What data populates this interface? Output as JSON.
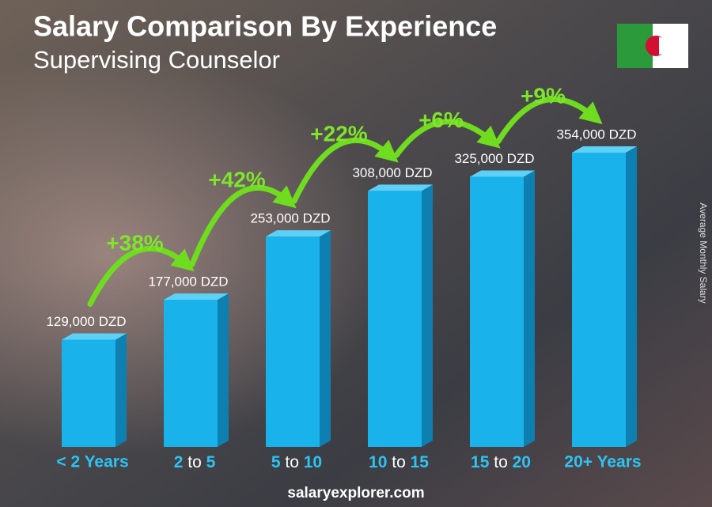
{
  "chart_data": {
    "type": "bar",
    "title": "Salary Comparison By Experience",
    "subtitle": "Supervising Counselor",
    "y_axis_label": "Average Monthly Salary",
    "categories": [
      "< 2 Years",
      "2 to 5",
      "5 to 10",
      "10 to 15",
      "15 to 20",
      "20+ Years"
    ],
    "values": [
      129000,
      177000,
      253000,
      308000,
      325000,
      354000
    ],
    "value_labels": [
      "129,000 DZD",
      "177,000 DZD",
      "253,000 DZD",
      "308,000 DZD",
      "325,000 DZD",
      "354,000 DZD"
    ],
    "color": "#1ab2ea",
    "annotations": [
      "+38%",
      "+42%",
      "+22%",
      "+6%",
      "+9%"
    ],
    "footer": "salaryexplorer.com"
  }
}
